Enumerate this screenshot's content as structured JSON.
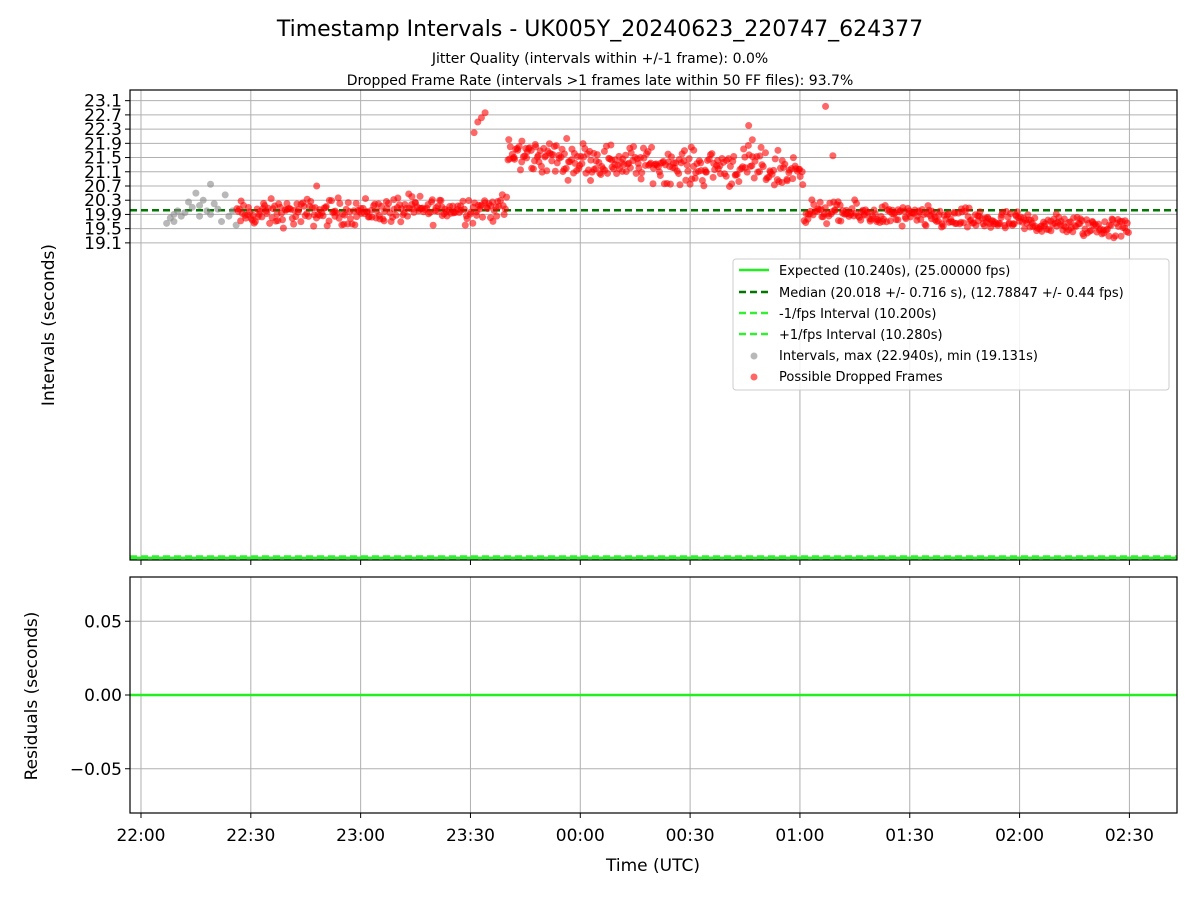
{
  "colors": {
    "expected": "#22ee22",
    "median": "#007700",
    "interval_lines": "#33ee33",
    "normal_points": "#888888",
    "dropped_points": "#ff0000",
    "grid": "#b0b0b0"
  },
  "chart_data": [
    {
      "type": "scatter",
      "title": "Timestamp Intervals - UK005Y_20240623_220747_624377",
      "subtitle_1": "Jitter Quality (intervals within +/-1 frame): 0.0%",
      "subtitle_2": "Dropped Frame Rate (intervals >1 frames late within 50 FF files): 93.7%",
      "xlabel": "",
      "ylabel": "Intervals (seconds)",
      "x_type": "time",
      "xlim": [
        "21:57",
        "02:43"
      ],
      "x_ticks": [
        {
          "t": "22:00",
          "label": "22:00"
        },
        {
          "t": "22:30",
          "label": "22:30"
        },
        {
          "t": "23:00",
          "label": "23:00"
        },
        {
          "t": "23:30",
          "label": "23:30"
        },
        {
          "t": "00:00",
          "label": "00:00"
        },
        {
          "t": "00:30",
          "label": "00:30"
        },
        {
          "t": "01:00",
          "label": "01:00"
        },
        {
          "t": "01:30",
          "label": "01:30"
        },
        {
          "t": "02:00",
          "label": "02:00"
        },
        {
          "t": "02:30",
          "label": "02:30"
        }
      ],
      "ylim": [
        10.18,
        23.4
      ],
      "y_ticks": [
        19.1,
        19.5,
        19.9,
        20.3,
        20.7,
        21.1,
        21.5,
        21.9,
        22.3,
        22.7,
        23.1
      ],
      "y_tick_labels": [
        "19.1",
        "19.5",
        "19.9",
        "20.3",
        "20.7",
        "21.1",
        "21.5",
        "21.9",
        "22.3",
        "22.7",
        "23.1"
      ],
      "grid": true,
      "legend_position": "center-right",
      "reference_lines": [
        {
          "name": "Expected (10.240s), (25.00000 fps)",
          "y": 10.24,
          "style": "solid"
        },
        {
          "name": "Median (20.018 +/- 0.716 s), (12.78847 +/- 0.44 fps)",
          "y": 20.018,
          "style": "dashed"
        },
        {
          "name": "-1/fps Interval (10.200s)",
          "y": 10.2,
          "style": "dashed"
        },
        {
          "name": "+1/fps Interval (10.280s)",
          "y": 10.28,
          "style": "dashed"
        }
      ],
      "series": [
        {
          "name": "Intervals, max (22.940s), min (19.131s)",
          "marker": "circle",
          "points": [
            [
              "22:07",
              19.65
            ],
            [
              "22:08",
              19.8
            ],
            [
              "22:09",
              19.9
            ],
            [
              "22:09",
              19.7
            ],
            [
              "22:10",
              20.0
            ],
            [
              "22:11",
              19.85
            ],
            [
              "22:12",
              19.95
            ],
            [
              "22:13",
              20.25
            ],
            [
              "22:14",
              20.1
            ],
            [
              "22:15",
              20.5
            ],
            [
              "22:16",
              19.85
            ],
            [
              "22:16",
              20.15
            ],
            [
              "22:17",
              20.3
            ],
            [
              "22:18",
              20.0
            ],
            [
              "22:19",
              20.75
            ],
            [
              "22:19",
              19.9
            ],
            [
              "22:20",
              20.2
            ],
            [
              "22:21",
              20.05
            ],
            [
              "22:22",
              19.7
            ],
            [
              "22:23",
              20.45
            ],
            [
              "22:24",
              19.85
            ],
            [
              "22:25",
              20.0
            ],
            [
              "22:26",
              19.6
            ]
          ]
        },
        {
          "name": "Possible Dropped Frames",
          "marker": "circle",
          "points": []
        }
      ],
      "dropped_segments": [
        {
          "from": "22:26",
          "to": "23:40",
          "count": 230,
          "center_start": 19.9,
          "center_end": 20.1,
          "spread": 0.35
        },
        {
          "from": "23:40",
          "to": "00:35",
          "count": 190,
          "center_start": 21.6,
          "center_end": 21.2,
          "spread": 0.45
        },
        {
          "from": "00:35",
          "to": "01:01",
          "count": 80,
          "center_start": 21.3,
          "center_end": 21.1,
          "spread": 0.5
        },
        {
          "from": "01:01",
          "to": "02:30",
          "count": 290,
          "center_start": 20.0,
          "center_end": 19.5,
          "spread": 0.28
        }
      ],
      "dropped_extremes": [
        [
          "23:34",
          22.76
        ],
        [
          "23:33",
          22.62
        ],
        [
          "23:32",
          22.5
        ],
        [
          "23:31",
          22.2
        ],
        [
          "00:46",
          22.4
        ],
        [
          "00:47",
          22.0
        ],
        [
          "01:07",
          22.94
        ],
        [
          "01:09",
          21.55
        ],
        [
          "22:48",
          20.7
        ],
        [
          "23:14",
          20.4
        ]
      ]
    },
    {
      "type": "line",
      "title": "",
      "xlabel": "Time (UTC)",
      "ylabel": "Residuals (seconds)",
      "x_type": "time",
      "ylim": [
        -0.08,
        0.08
      ],
      "y_ticks": [
        0.05,
        0.0,
        -0.05
      ],
      "y_tick_labels": [
        "0.05",
        "0.00",
        "−0.05"
      ],
      "grid": true,
      "series": [
        {
          "name": "",
          "style": "solid",
          "y_constant": 0.0
        }
      ]
    }
  ]
}
